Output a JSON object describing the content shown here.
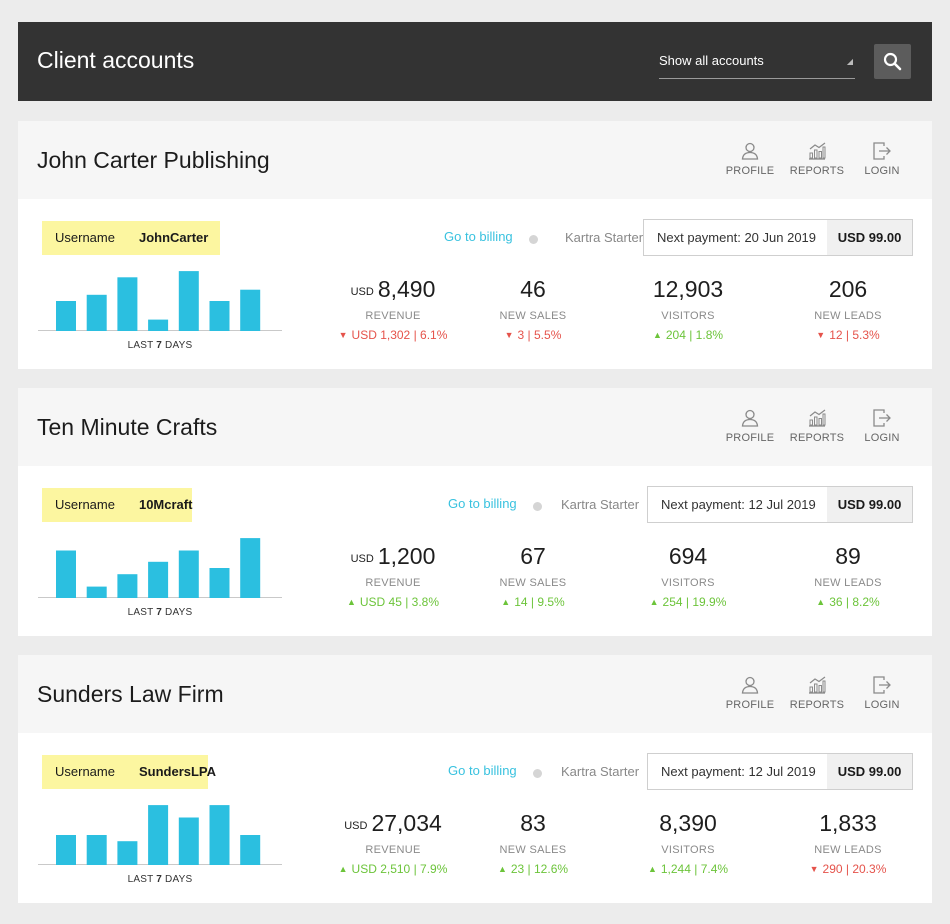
{
  "header": {
    "title": "Client accounts",
    "filter_value": "Show all accounts",
    "search_icon": "search-icon"
  },
  "action_labels": {
    "profile": "PROFILE",
    "reports": "REPORTS",
    "login": "LOGIN"
  },
  "common": {
    "username_label": "Username",
    "chart_caption_prefix": "LAST",
    "chart_caption_days": "7",
    "chart_caption_suffix": "DAYS",
    "billing_link": "Go to billing",
    "plan": "Kartra Starter",
    "payment_prefix": "Next payment:",
    "currency": "USD",
    "metric_labels": [
      "REVENUE",
      "NEW SALES",
      "VISITORS",
      "NEW LEADS"
    ]
  },
  "colors": {
    "accent": "#39c2df",
    "bar": "#2bbfe0",
    "up": "#6cc43a",
    "down": "#e5534b",
    "header_bg": "#333333",
    "badge_bg": "#fcf6a0"
  },
  "accounts": [
    {
      "name": "John Carter Publishing",
      "username": "JohnCarter",
      "next_payment_date": "20 Jun 2019",
      "amount": "USD 99.00",
      "chart_data": {
        "type": "bar",
        "values": [
          29,
          35,
          52,
          11,
          58,
          29,
          40
        ],
        "ylim": [
          0,
          60
        ]
      },
      "metrics": [
        {
          "value": "8,490",
          "delta": "USD 1,302 | 6.1%",
          "dir": "down"
        },
        {
          "value": "46",
          "delta": "3 | 5.5%",
          "dir": "down"
        },
        {
          "value": "12,903",
          "delta": "204 | 1.8%",
          "dir": "up"
        },
        {
          "value": "206",
          "delta": "12 | 5.3%",
          "dir": "down"
        }
      ]
    },
    {
      "name": "Ten Minute Crafts",
      "username": "10Mcraft",
      "next_payment_date": "12 Jul 2019",
      "amount": "USD 99.00",
      "chart_data": {
        "type": "bar",
        "values": [
          46,
          11,
          23,
          35,
          46,
          29,
          58
        ],
        "ylim": [
          0,
          60
        ]
      },
      "metrics": [
        {
          "value": "1,200",
          "delta": "USD 45 | 3.8%",
          "dir": "up"
        },
        {
          "value": "67",
          "delta": "14 | 9.5%",
          "dir": "up"
        },
        {
          "value": "694",
          "delta": "254 | 19.9%",
          "dir": "up"
        },
        {
          "value": "89",
          "delta": "36 | 8.2%",
          "dir": "up"
        }
      ]
    },
    {
      "name": "Sunders Law Firm",
      "username": "SundersLPA",
      "next_payment_date": "12 Jul 2019",
      "amount": "USD 99.00",
      "chart_data": {
        "type": "bar",
        "values": [
          29,
          29,
          23,
          58,
          46,
          58,
          29
        ],
        "ylim": [
          0,
          60
        ]
      },
      "metrics": [
        {
          "value": "27,034",
          "delta": "USD 2,510 | 7.9%",
          "dir": "up"
        },
        {
          "value": "83",
          "delta": "23 | 12.6%",
          "dir": "up"
        },
        {
          "value": "8,390",
          "delta": "1,244 | 7.4%",
          "dir": "up"
        },
        {
          "value": "1,833",
          "delta": "290 | 20.3%",
          "dir": "down"
        }
      ]
    }
  ]
}
